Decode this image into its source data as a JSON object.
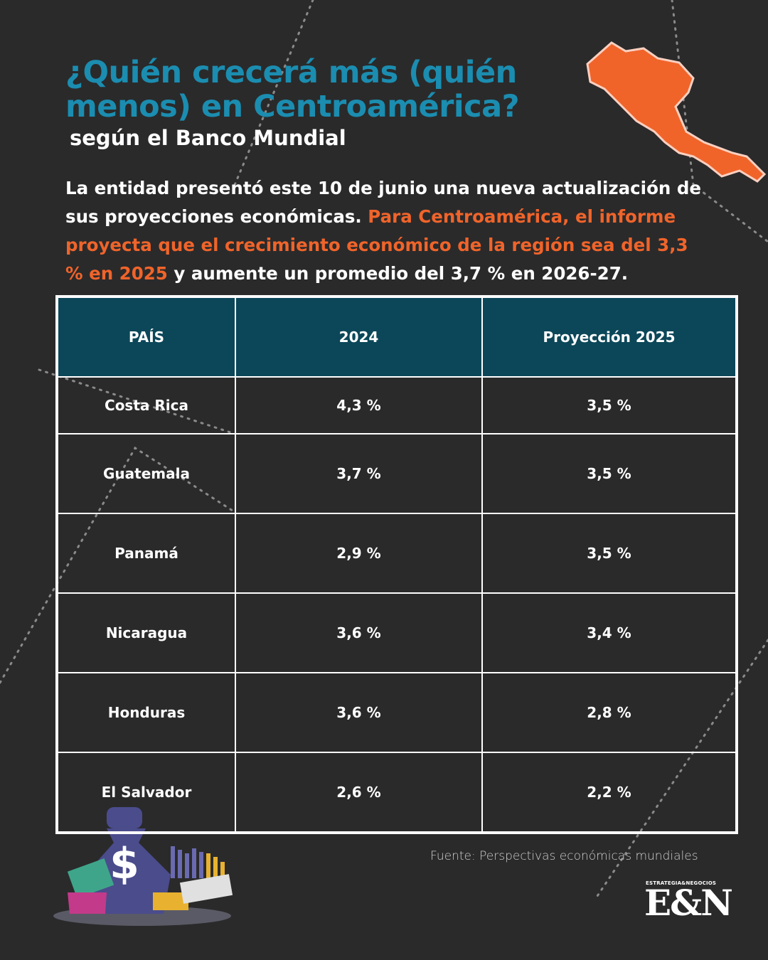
{
  "header": {
    "title": "¿Quién crecerá más (quién menos) en Centroamérica?",
    "subtitle": "según el Banco Mundial"
  },
  "intro": {
    "text_1": "La entidad presentó este 10 de junio una nueva actualización de sus proyecciones económicas.",
    "highlight": "Para Centroamérica, el informe proyecta que el crecimiento económico de la región sea del 3,3 % en 2025",
    "text_2": "y aumente un promedio del 3,7 % en 2026-27."
  },
  "table": {
    "columns": [
      "PAÍS",
      "2024",
      "Proyección 2025"
    ],
    "rows": [
      [
        "Costa Rica",
        "4,3 %",
        "3,5 %"
      ],
      [
        "Guatemala",
        "3,7 %",
        "3,5 %"
      ],
      [
        "Panamá",
        "2,9 %",
        "3,5 %"
      ],
      [
        "Nicaragua",
        "3,6 %",
        "3,4 %"
      ],
      [
        "Honduras",
        "3,6 %",
        "2,8 %"
      ],
      [
        "El Salvador",
        "2,6 %",
        "2,2 %"
      ]
    ]
  },
  "source": "Fuente: Perspectivas económicas mundiales",
  "logo": {
    "tagline": "ESTRATEGIA&NEGOCIOS",
    "mark": "E&N"
  }
}
